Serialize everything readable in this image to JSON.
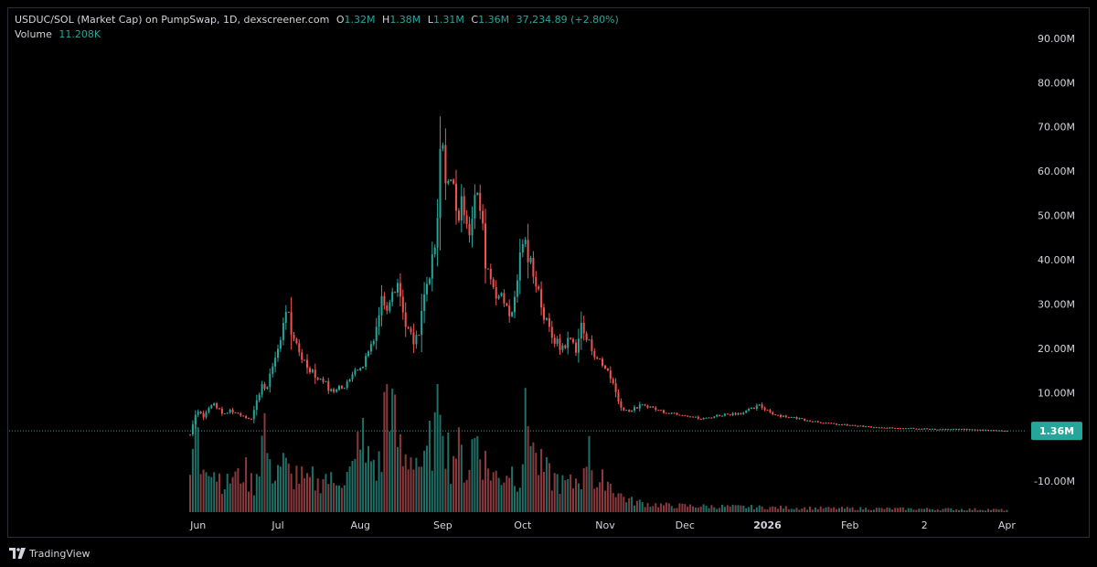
{
  "legend": {
    "symbol": "USDUC/SOL (Market Cap) on PumpSwap, 1D, dexscreener.com",
    "o_key": "O",
    "o_val": "1.32M",
    "h_key": "H",
    "h_val": "1.38M",
    "l_key": "L",
    "l_val": "1.31M",
    "c_key": "C",
    "c_val": "1.36M",
    "change": "37,234.89 (+2.80%)",
    "volume_label": "Volume",
    "volume_val": "11.208K"
  },
  "footer": {
    "brand": "TradingView",
    "logo_icon": "tradingview-logo-icon"
  },
  "colors": {
    "up": "#26a69a",
    "down": "#ef5350",
    "vol_up": "#1f6f67",
    "vol_down": "#8a3a3e",
    "last_price": "#26a69a"
  },
  "chart_data": {
    "type": "candlestick",
    "y_unit": "M",
    "ylim": [
      -17,
      97
    ],
    "y_ticks": [
      {
        "value": 90,
        "label": "90.00M"
      },
      {
        "value": 80,
        "label": "80.00M"
      },
      {
        "value": 70,
        "label": "70.00M"
      },
      {
        "value": 60,
        "label": "60.00M"
      },
      {
        "value": 50,
        "label": "50.00M"
      },
      {
        "value": 40,
        "label": "40.00M"
      },
      {
        "value": 30,
        "label": "30.00M"
      },
      {
        "value": 20,
        "label": "20.00M"
      },
      {
        "value": 10,
        "label": "10.00M"
      },
      {
        "value": -10,
        "label": "-10.00M"
      }
    ],
    "x_ticks": [
      {
        "label": "Jun",
        "day": 3,
        "bold": false
      },
      {
        "label": "Jul",
        "day": 33,
        "bold": false
      },
      {
        "label": "Aug",
        "day": 64,
        "bold": false
      },
      {
        "label": "Sep",
        "day": 95,
        "bold": false
      },
      {
        "label": "Oct",
        "day": 125,
        "bold": false
      },
      {
        "label": "Nov",
        "day": 156,
        "bold": false
      },
      {
        "label": "Dec",
        "day": 186,
        "bold": false
      },
      {
        "label": "2026",
        "day": 217,
        "bold": true
      },
      {
        "label": "Feb",
        "day": 248,
        "bold": false
      },
      {
        "label": "2",
        "day": 276,
        "bold": false
      },
      {
        "label": "Apr",
        "day": 307,
        "bold": false
      }
    ],
    "last_price": {
      "value": 1.36,
      "label": "1.36M"
    },
    "close_series": [
      [
        0,
        0.5
      ],
      [
        1,
        3
      ],
      [
        2,
        5
      ],
      [
        3,
        6
      ],
      [
        5,
        4.5
      ],
      [
        7,
        6.5
      ],
      [
        9,
        7.5
      ],
      [
        11,
        6
      ],
      [
        13,
        5
      ],
      [
        15,
        6
      ],
      [
        17,
        5.5
      ],
      [
        19,
        5
      ],
      [
        21,
        4.5
      ],
      [
        23,
        4
      ],
      [
        25,
        8
      ],
      [
        27,
        12
      ],
      [
        29,
        11
      ],
      [
        31,
        16
      ],
      [
        33,
        20
      ],
      [
        35,
        25
      ],
      [
        36,
        29
      ],
      [
        37,
        27
      ],
      [
        38,
        22
      ],
      [
        40,
        21
      ],
      [
        42,
        18
      ],
      [
        44,
        16
      ],
      [
        46,
        15
      ],
      [
        48,
        13
      ],
      [
        50,
        13
      ],
      [
        52,
        11
      ],
      [
        54,
        10
      ],
      [
        56,
        12
      ],
      [
        58,
        11
      ],
      [
        60,
        13
      ],
      [
        62,
        16
      ],
      [
        64,
        15
      ],
      [
        66,
        18
      ],
      [
        68,
        21
      ],
      [
        70,
        25
      ],
      [
        72,
        31
      ],
      [
        74,
        30
      ],
      [
        76,
        34
      ],
      [
        78,
        35
      ],
      [
        80,
        28
      ],
      [
        82,
        24
      ],
      [
        84,
        21
      ],
      [
        86,
        23
      ],
      [
        88,
        32
      ],
      [
        90,
        36
      ],
      [
        92,
        42
      ],
      [
        93,
        48
      ],
      [
        94,
        65
      ],
      [
        95,
        63
      ],
      [
        97,
        58
      ],
      [
        99,
        56
      ],
      [
        101,
        50
      ],
      [
        103,
        53
      ],
      [
        105,
        47
      ],
      [
        107,
        54
      ],
      [
        109,
        52
      ],
      [
        111,
        40
      ],
      [
        113,
        36
      ],
      [
        115,
        33
      ],
      [
        117,
        31
      ],
      [
        119,
        30
      ],
      [
        121,
        27
      ],
      [
        123,
        36
      ],
      [
        125,
        45
      ],
      [
        127,
        40
      ],
      [
        129,
        38
      ],
      [
        131,
        33
      ],
      [
        133,
        27
      ],
      [
        135,
        24
      ],
      [
        137,
        22
      ],
      [
        139,
        20
      ],
      [
        141,
        21
      ],
      [
        143,
        22
      ],
      [
        145,
        20
      ],
      [
        147,
        25
      ],
      [
        149,
        22
      ],
      [
        151,
        20
      ],
      [
        153,
        18
      ],
      [
        155,
        16
      ],
      [
        157,
        15
      ],
      [
        159,
        12
      ],
      [
        161,
        8
      ],
      [
        163,
        6
      ],
      [
        166,
        6
      ],
      [
        169,
        7
      ],
      [
        172,
        7
      ],
      [
        176,
        6
      ],
      [
        180,
        5.5
      ],
      [
        186,
        5
      ],
      [
        192,
        4
      ],
      [
        200,
        5
      ],
      [
        208,
        5.5
      ],
      [
        214,
        7
      ],
      [
        220,
        5
      ],
      [
        230,
        4
      ],
      [
        240,
        3
      ],
      [
        250,
        2.5
      ],
      [
        260,
        2
      ],
      [
        270,
        2
      ],
      [
        280,
        1.7
      ],
      [
        290,
        1.7
      ],
      [
        300,
        1.5
      ],
      [
        307,
        1.36
      ]
    ],
    "volume_series": [
      [
        0,
        5
      ],
      [
        2,
        17
      ],
      [
        4,
        8
      ],
      [
        6,
        11
      ],
      [
        8,
        9
      ],
      [
        10,
        7
      ],
      [
        12,
        6
      ],
      [
        14,
        5
      ],
      [
        16,
        7
      ],
      [
        18,
        6
      ],
      [
        20,
        8
      ],
      [
        22,
        6
      ],
      [
        24,
        5
      ],
      [
        26,
        10
      ],
      [
        28,
        16
      ],
      [
        30,
        7
      ],
      [
        32,
        8
      ],
      [
        34,
        9
      ],
      [
        36,
        8
      ],
      [
        38,
        6
      ],
      [
        40,
        7
      ],
      [
        42,
        6
      ],
      [
        44,
        5
      ],
      [
        46,
        6
      ],
      [
        48,
        5
      ],
      [
        50,
        7
      ],
      [
        52,
        6
      ],
      [
        54,
        5
      ],
      [
        56,
        7
      ],
      [
        58,
        6
      ],
      [
        60,
        7
      ],
      [
        62,
        8
      ],
      [
        64,
        17
      ],
      [
        66,
        9
      ],
      [
        68,
        10
      ],
      [
        70,
        8
      ],
      [
        72,
        9
      ],
      [
        74,
        28
      ],
      [
        76,
        18
      ],
      [
        78,
        13
      ],
      [
        80,
        9
      ],
      [
        82,
        10
      ],
      [
        84,
        11
      ],
      [
        86,
        9
      ],
      [
        88,
        8
      ],
      [
        90,
        12
      ],
      [
        92,
        14
      ],
      [
        94,
        25
      ],
      [
        95,
        21
      ],
      [
        96,
        14
      ],
      [
        98,
        9
      ],
      [
        100,
        12
      ],
      [
        102,
        10
      ],
      [
        104,
        7
      ],
      [
        106,
        12
      ],
      [
        108,
        14
      ],
      [
        110,
        10
      ],
      [
        112,
        8
      ],
      [
        114,
        7
      ],
      [
        116,
        6
      ],
      [
        118,
        7
      ],
      [
        120,
        8
      ],
      [
        122,
        7
      ],
      [
        124,
        6
      ],
      [
        126,
        16
      ],
      [
        128,
        17
      ],
      [
        130,
        9
      ],
      [
        132,
        8
      ],
      [
        134,
        7
      ],
      [
        136,
        6
      ],
      [
        138,
        6
      ],
      [
        140,
        5
      ],
      [
        142,
        5
      ],
      [
        144,
        5
      ],
      [
        146,
        7
      ],
      [
        148,
        6
      ],
      [
        150,
        16
      ],
      [
        152,
        5
      ],
      [
        154,
        4
      ],
      [
        156,
        7
      ],
      [
        158,
        5
      ],
      [
        160,
        4
      ],
      [
        162,
        3
      ],
      [
        166,
        2
      ],
      [
        172,
        1.5
      ],
      [
        180,
        1.2
      ],
      [
        200,
        1
      ],
      [
        240,
        0.7
      ],
      [
        300,
        0.5
      ],
      [
        307,
        0.4
      ]
    ]
  }
}
